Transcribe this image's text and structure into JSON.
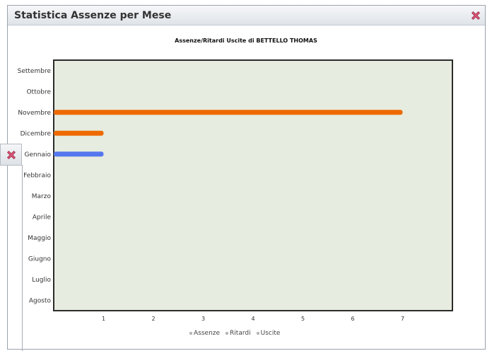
{
  "dialog": {
    "title": "Statistica Assenze per Mese",
    "close_icon": "close-icon"
  },
  "chart_data": {
    "type": "bar",
    "orientation": "horizontal",
    "title": "Assenze/Ritardi Uscite di BETTELLO THOMAS",
    "categories": [
      "Settembre",
      "Ottobre",
      "Novembre",
      "Dicembre",
      "Gennaio",
      "Febbraio",
      "Marzo",
      "Aprile",
      "Maggio",
      "Giugno",
      "Luglio",
      "Agosto"
    ],
    "xticks": [
      "1",
      "2",
      "3",
      "4",
      "5",
      "6",
      "7"
    ],
    "xlim": [
      0,
      8
    ],
    "series": [
      {
        "name": "Assenze",
        "color": "#5577ee",
        "values": [
          0,
          0,
          0,
          0,
          1,
          0,
          0,
          0,
          0,
          0,
          0,
          0
        ]
      },
      {
        "name": "Ritardi",
        "color": "#ee6a00",
        "values": [
          0,
          0,
          7,
          1,
          0,
          0,
          0,
          0,
          0,
          0,
          0,
          0
        ]
      },
      {
        "name": "Uscite",
        "color": "#aaaaaa",
        "values": [
          0,
          0,
          0,
          0,
          0,
          0,
          0,
          0,
          0,
          0,
          0,
          0
        ]
      }
    ],
    "legend_position": "bottom-center",
    "plot_background": "#e6ecdf",
    "grid": false
  }
}
